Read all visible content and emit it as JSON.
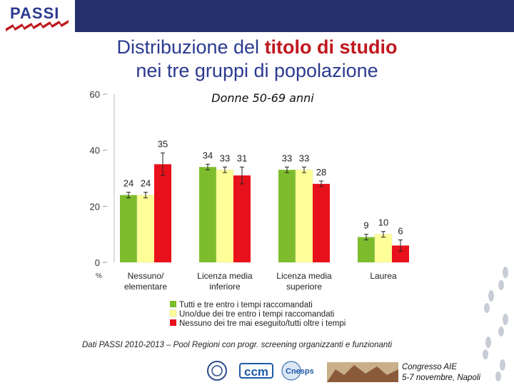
{
  "header": {
    "logo_text": "PASSI"
  },
  "title": {
    "line1_prefix": "Distribuzione del ",
    "line1_highlight": "titolo di studio",
    "line2": "nei tre gruppi di popolazione"
  },
  "chart_data": {
    "type": "bar",
    "title": "Donne 50-69 anni",
    "ylabel": "%",
    "ylim": [
      0,
      60
    ],
    "yticks": [
      "0",
      "20",
      "40",
      "60"
    ],
    "categories": [
      "Nessuno/\nelementare",
      "Licenza media\ninferiore",
      "Licenza media\nsuperiore",
      "Laurea"
    ],
    "series": [
      {
        "name": "Tutti e tre entro i tempi raccomandati",
        "color": "#7dbd2d",
        "values": [
          24,
          34,
          33,
          9
        ]
      },
      {
        "name": "Uno/due dei tre entro i tempi raccomandati",
        "color": "#ffff99",
        "values": [
          24,
          33,
          33,
          10
        ]
      },
      {
        "name": "Nessuno dei tre mai eseguito/tutti oltre i tempi",
        "color": "#e8111b",
        "values": [
          35,
          31,
          28,
          6
        ]
      }
    ],
    "data_labels": [
      [
        "24",
        "34",
        "33",
        "9"
      ],
      [
        "24",
        "33",
        "33",
        "10"
      ],
      [
        "35",
        "31",
        "28",
        "6"
      ]
    ],
    "error_bars": [
      [
        [
          23,
          25
        ],
        [
          33,
          35
        ],
        [
          32,
          34
        ],
        [
          8,
          10
        ]
      ],
      [
        [
          23,
          25
        ],
        [
          32,
          34
        ],
        [
          32,
          34
        ],
        [
          9,
          11
        ]
      ],
      [
        [
          31,
          39
        ],
        [
          28,
          34
        ],
        [
          27,
          29
        ],
        [
          4,
          8
        ]
      ]
    ],
    "grid": false,
    "legend_position": "bottom"
  },
  "footer": {
    "source": "Dati PASSI 2010-2013 – Pool Regioni con progr. screening organizzanti e funzionanti",
    "congress_line1": "Congresso AIE",
    "congress_line2": "5-7 novembre, Napoli",
    "logo_ccm": "ccm",
    "logo_cnesps": "Cnesps"
  }
}
